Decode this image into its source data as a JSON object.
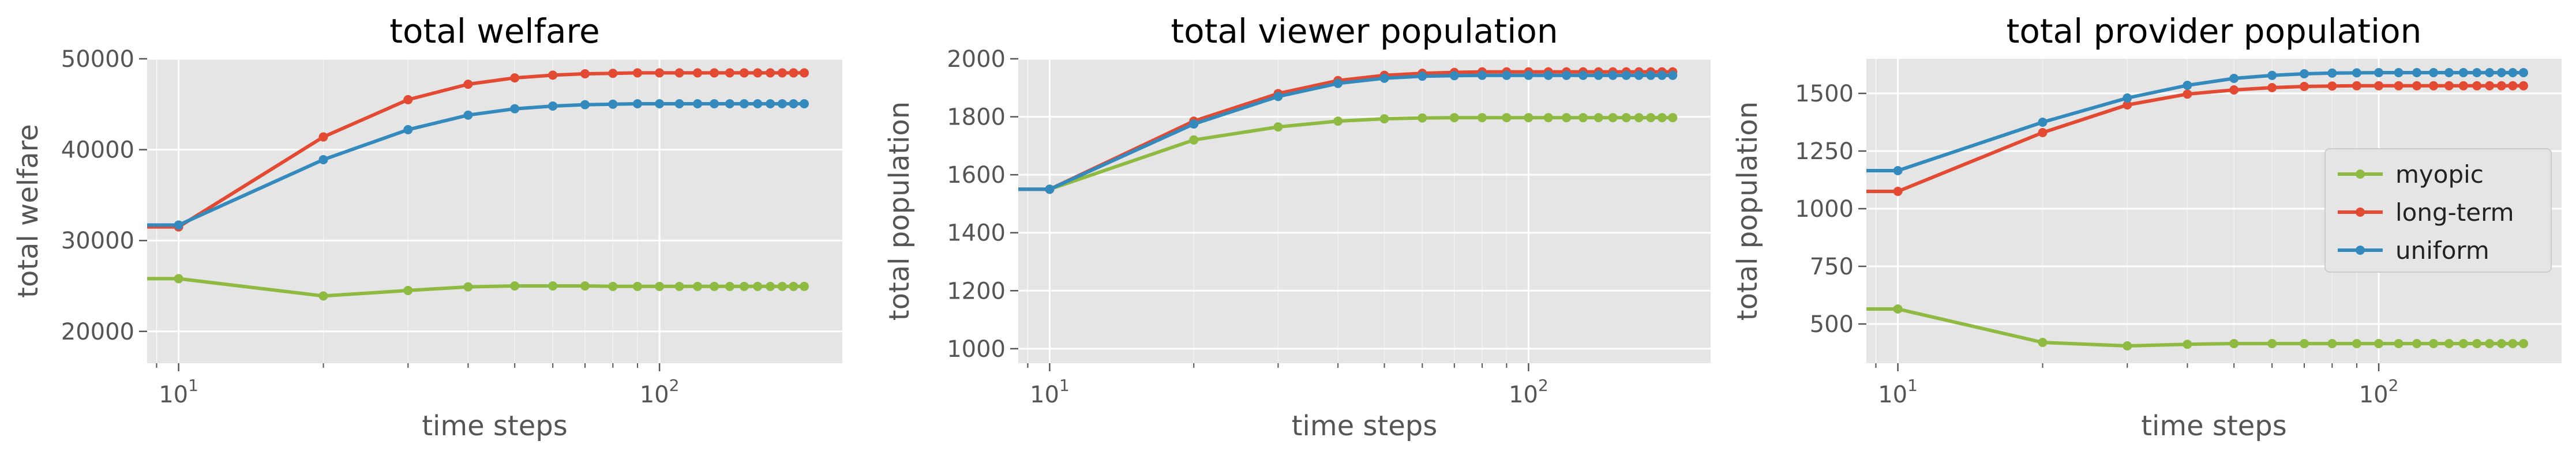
{
  "x": [
    8.6,
    10,
    20,
    30,
    40,
    50,
    60,
    70,
    80,
    90,
    100,
    110,
    120,
    130,
    140,
    150,
    160,
    170,
    180,
    190,
    200
  ],
  "chart_data": [
    {
      "type": "line",
      "title": "total welfare",
      "xlabel": "time steps",
      "ylabel": "total welfare",
      "xscale": "log",
      "xlim": [
        8.6,
        240
      ],
      "ylim": [
        16500,
        50000
      ],
      "yticks": [
        20000,
        30000,
        40000,
        50000
      ],
      "ytick_labels": [
        "20000",
        "30000",
        "40000",
        "50000"
      ],
      "xtick_labels": [
        "10^1",
        "10^2"
      ],
      "grid": true,
      "legend": null,
      "series": [
        {
          "name": "myopic",
          "color": "#8EBA42",
          "values": [
            25800,
            25800,
            23900,
            24500,
            24900,
            25000,
            25000,
            25000,
            24950,
            24950,
            24950,
            24950,
            24950,
            24950,
            24950,
            24950,
            24950,
            24950,
            24950,
            24950,
            24950
          ]
        },
        {
          "name": "long-term",
          "color": "#E24A33",
          "values": [
            31500,
            31500,
            41400,
            45500,
            47200,
            47900,
            48200,
            48350,
            48400,
            48450,
            48450,
            48450,
            48450,
            48450,
            48450,
            48450,
            48450,
            48450,
            48450,
            48450,
            48450
          ]
        },
        {
          "name": "uniform",
          "color": "#348ABD",
          "values": [
            31700,
            31700,
            38900,
            42200,
            43800,
            44500,
            44800,
            44950,
            45000,
            45050,
            45050,
            45050,
            45050,
            45050,
            45050,
            45050,
            45050,
            45050,
            45050,
            45050,
            45050
          ]
        }
      ]
    },
    {
      "type": "line",
      "title": "total viewer population",
      "xlabel": "time steps",
      "ylabel": "total population",
      "xscale": "log",
      "xlim": [
        8.6,
        240
      ],
      "ylim": [
        950,
        2000
      ],
      "yticks": [
        1000,
        1200,
        1400,
        1600,
        1800,
        2000
      ],
      "ytick_labels": [
        "1000",
        "1200",
        "1400",
        "1600",
        "1800",
        "2000"
      ],
      "xtick_labels": [
        "10^1",
        "10^2"
      ],
      "grid": true,
      "legend": null,
      "series": [
        {
          "name": "myopic",
          "color": "#8EBA42",
          "values": [
            1550,
            1550,
            1720,
            1765,
            1785,
            1793,
            1796,
            1797,
            1797,
            1797,
            1797,
            1797,
            1797,
            1797,
            1797,
            1797,
            1797,
            1797,
            1797,
            1797,
            1797
          ]
        },
        {
          "name": "long-term",
          "color": "#E24A33",
          "values": [
            1550,
            1550,
            1785,
            1880,
            1925,
            1943,
            1950,
            1953,
            1955,
            1955,
            1955,
            1955,
            1955,
            1955,
            1955,
            1955,
            1955,
            1955,
            1955,
            1955,
            1955
          ]
        },
        {
          "name": "uniform",
          "color": "#348ABD",
          "values": [
            1550,
            1550,
            1775,
            1870,
            1915,
            1933,
            1940,
            1942,
            1943,
            1943,
            1943,
            1943,
            1943,
            1943,
            1943,
            1943,
            1943,
            1943,
            1943,
            1943,
            1943
          ]
        }
      ]
    },
    {
      "type": "line",
      "title": "total provider population",
      "xlabel": "time steps",
      "ylabel": "total population",
      "xscale": "log",
      "xlim": [
        8.6,
        240
      ],
      "ylim": [
        330,
        1650
      ],
      "yticks": [
        500,
        750,
        1000,
        1250,
        1500
      ],
      "ytick_labels": [
        "500",
        "750",
        "1000",
        "1250",
        "1500"
      ],
      "xtick_labels": [
        "10^1",
        "10^2"
      ],
      "grid": true,
      "legend": "center-right",
      "series": [
        {
          "name": "myopic",
          "color": "#8EBA42",
          "values": [
            565,
            565,
            420,
            405,
            412,
            415,
            415,
            415,
            415,
            415,
            415,
            415,
            415,
            415,
            415,
            415,
            415,
            415,
            415,
            415,
            415
          ]
        },
        {
          "name": "long-term",
          "color": "#E24A33",
          "values": [
            1075,
            1075,
            1330,
            1450,
            1497,
            1515,
            1525,
            1530,
            1532,
            1533,
            1533,
            1533,
            1533,
            1533,
            1533,
            1533,
            1533,
            1533,
            1533,
            1533,
            1533
          ]
        },
        {
          "name": "uniform",
          "color": "#348ABD",
          "values": [
            1165,
            1165,
            1375,
            1480,
            1535,
            1565,
            1578,
            1585,
            1588,
            1589,
            1590,
            1590,
            1590,
            1590,
            1590,
            1590,
            1590,
            1590,
            1590,
            1590,
            1590
          ]
        }
      ]
    }
  ]
}
